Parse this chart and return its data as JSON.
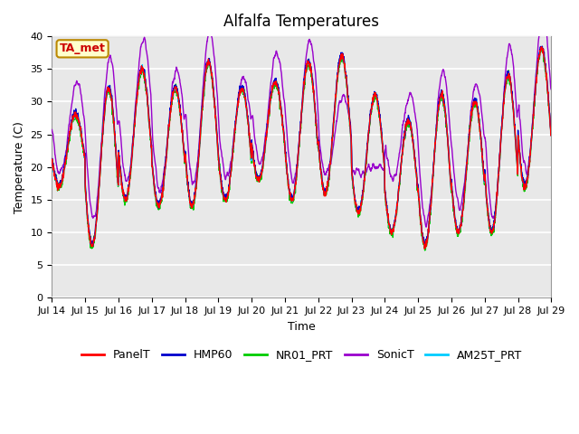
{
  "title": "Alfalfa Temperatures",
  "xlabel": "Time",
  "ylabel": "Temperature (C)",
  "ylim": [
    0,
    40
  ],
  "yticks": [
    0,
    5,
    10,
    15,
    20,
    25,
    30,
    35,
    40
  ],
  "annotation_text": "TA_met",
  "annotation_color": "#cc0000",
  "annotation_bg": "#ffffcc",
  "annotation_border": "#bb8800",
  "series_colors": {
    "PanelT": "#ff0000",
    "HMP60": "#0000cc",
    "NR01_PRT": "#00cc00",
    "SonicT": "#9900cc",
    "AM25T_PRT": "#00ccff"
  },
  "background_color": "#e8e8e8",
  "grid_color": "#ffffff",
  "start_day": 14,
  "n_days": 15,
  "points_per_day": 144,
  "title_fontsize": 12,
  "axis_fontsize": 9,
  "tick_fontsize": 8,
  "legend_fontsize": 9,
  "figwidth": 6.4,
  "figheight": 4.8,
  "dpi": 100
}
